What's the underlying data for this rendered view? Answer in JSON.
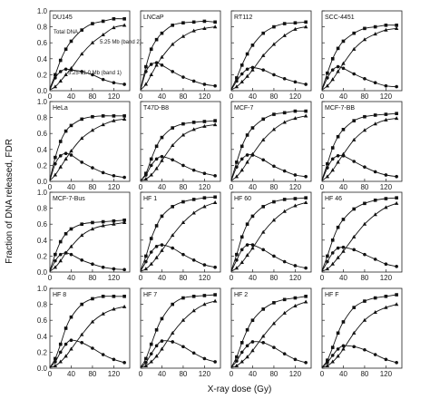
{
  "chart_data": {
    "type": "scatter",
    "xlabel": "X-ray dose (Gy)",
    "ylabel": "Fraction of DNA released, FDR",
    "xlim": [
      0,
      150
    ],
    "ylim": [
      0,
      1.0
    ],
    "x_ticks": [
      "0",
      "40",
      "80",
      "120"
    ],
    "y_ticks": [
      "0.0",
      "0.2",
      "0.4",
      "0.6",
      "0.8",
      "1.0"
    ],
    "doses": [
      0,
      10,
      20,
      30,
      40,
      60,
      80,
      100,
      120,
      140
    ],
    "annotations": {
      "total": "Total DNA",
      "band2": "5.25 Mb (band 2)",
      "band1": "5.25-11.0 Mb (band 1)"
    },
    "panels": [
      {
        "name": "DU145",
        "series": [
          {
            "marker": "square",
            "values": [
              0.03,
              0.2,
              0.38,
              0.52,
              0.62,
              0.76,
              0.84,
              0.87,
              0.9,
              0.9
            ]
          },
          {
            "marker": "triangle",
            "values": [
              0.01,
              0.05,
              0.12,
              0.2,
              0.28,
              0.46,
              0.6,
              0.7,
              0.79,
              0.82
            ]
          },
          {
            "marker": "circle",
            "values": [
              0.01,
              0.16,
              0.24,
              0.27,
              0.26,
              0.24,
              0.2,
              0.14,
              0.1,
              0.08
            ]
          }
        ]
      },
      {
        "name": "LNCaP",
        "series": [
          {
            "marker": "square",
            "values": [
              0.02,
              0.3,
              0.52,
              0.64,
              0.72,
              0.82,
              0.85,
              0.86,
              0.87,
              0.86
            ]
          },
          {
            "marker": "triangle",
            "values": [
              0.01,
              0.08,
              0.2,
              0.32,
              0.42,
              0.58,
              0.68,
              0.75,
              0.78,
              0.8
            ]
          },
          {
            "marker": "circle",
            "values": [
              0.01,
              0.24,
              0.33,
              0.35,
              0.32,
              0.24,
              0.17,
              0.12,
              0.08,
              0.06
            ]
          }
        ]
      },
      {
        "name": "RT112",
        "series": [
          {
            "marker": "square",
            "values": [
              0.02,
              0.16,
              0.32,
              0.46,
              0.57,
              0.72,
              0.8,
              0.84,
              0.85,
              0.86
            ]
          },
          {
            "marker": "triangle",
            "values": [
              0.01,
              0.05,
              0.11,
              0.18,
              0.26,
              0.44,
              0.58,
              0.69,
              0.77,
              0.8
            ]
          },
          {
            "marker": "circle",
            "values": [
              0.01,
              0.12,
              0.21,
              0.27,
              0.29,
              0.26,
              0.2,
              0.15,
              0.11,
              0.08
            ]
          }
        ]
      },
      {
        "name": "SCC-4451",
        "series": [
          {
            "marker": "square",
            "values": [
              0.02,
              0.22,
              0.4,
              0.53,
              0.62,
              0.72,
              0.78,
              0.8,
              0.82,
              0.82
            ]
          },
          {
            "marker": "triangle",
            "values": [
              0.01,
              0.06,
              0.14,
              0.24,
              0.34,
              0.52,
              0.64,
              0.71,
              0.76,
              0.78
            ]
          },
          {
            "marker": "circle",
            "values": [
              0.01,
              0.16,
              0.26,
              0.3,
              0.28,
              0.21,
              0.15,
              0.1,
              0.06,
              0.05
            ]
          }
        ]
      },
      {
        "name": "HeLa",
        "series": [
          {
            "marker": "square",
            "values": [
              0.02,
              0.3,
              0.5,
              0.63,
              0.7,
              0.78,
              0.81,
              0.82,
              0.82,
              0.82
            ]
          },
          {
            "marker": "triangle",
            "values": [
              0.01,
              0.08,
              0.18,
              0.28,
              0.38,
              0.54,
              0.64,
              0.71,
              0.76,
              0.78
            ]
          },
          {
            "marker": "circle",
            "values": [
              0.01,
              0.22,
              0.32,
              0.35,
              0.33,
              0.24,
              0.17,
              0.11,
              0.07,
              0.05
            ]
          }
        ]
      },
      {
        "name": "T47D-B8",
        "series": [
          {
            "marker": "square",
            "values": [
              0.01,
              0.1,
              0.28,
              0.44,
              0.55,
              0.67,
              0.72,
              0.74,
              0.75,
              0.76
            ]
          },
          {
            "marker": "triangle",
            "values": [
              0.01,
              0.03,
              0.08,
              0.16,
              0.26,
              0.45,
              0.58,
              0.65,
              0.69,
              0.71
            ]
          },
          {
            "marker": "circle",
            "values": [
              0.01,
              0.08,
              0.2,
              0.28,
              0.31,
              0.27,
              0.2,
              0.14,
              0.1,
              0.07
            ]
          }
        ]
      },
      {
        "name": "MCF-7",
        "series": [
          {
            "marker": "square",
            "values": [
              0.02,
              0.24,
              0.44,
              0.58,
              0.67,
              0.78,
              0.84,
              0.86,
              0.88,
              0.88
            ]
          },
          {
            "marker": "triangle",
            "values": [
              0.01,
              0.06,
              0.14,
              0.24,
              0.34,
              0.52,
              0.65,
              0.74,
              0.79,
              0.82
            ]
          },
          {
            "marker": "circle",
            "values": [
              0.01,
              0.18,
              0.28,
              0.33,
              0.33,
              0.27,
              0.19,
              0.13,
              0.08,
              0.06
            ]
          }
        ]
      },
      {
        "name": "MCF-7-BB",
        "series": [
          {
            "marker": "square",
            "values": [
              0.02,
              0.22,
              0.42,
              0.56,
              0.65,
              0.76,
              0.81,
              0.83,
              0.84,
              0.85
            ]
          },
          {
            "marker": "triangle",
            "values": [
              0.01,
              0.06,
              0.14,
              0.24,
              0.34,
              0.52,
              0.64,
              0.72,
              0.77,
              0.79
            ]
          },
          {
            "marker": "circle",
            "values": [
              0.01,
              0.17,
              0.28,
              0.32,
              0.32,
              0.25,
              0.18,
              0.12,
              0.08,
              0.06
            ]
          }
        ]
      },
      {
        "name": "MCF-7-Bus",
        "series": [
          {
            "marker": "square",
            "values": [
              0.02,
              0.22,
              0.38,
              0.48,
              0.54,
              0.6,
              0.62,
              0.63,
              0.64,
              0.65
            ]
          },
          {
            "marker": "triangle",
            "values": [
              0.01,
              0.06,
              0.14,
              0.24,
              0.32,
              0.46,
              0.54,
              0.58,
              0.6,
              0.62
            ]
          },
          {
            "marker": "circle",
            "values": [
              0.01,
              0.14,
              0.22,
              0.24,
              0.22,
              0.15,
              0.1,
              0.06,
              0.04,
              0.03
            ]
          }
        ]
      },
      {
        "name": "HF 1",
        "series": [
          {
            "marker": "square",
            "values": [
              0.02,
              0.2,
              0.42,
              0.58,
              0.7,
              0.82,
              0.88,
              0.91,
              0.93,
              0.94
            ]
          },
          {
            "marker": "triangle",
            "values": [
              0.01,
              0.04,
              0.1,
              0.18,
              0.27,
              0.46,
              0.62,
              0.74,
              0.82,
              0.87
            ]
          },
          {
            "marker": "circle",
            "values": [
              0.01,
              0.13,
              0.25,
              0.32,
              0.34,
              0.3,
              0.22,
              0.15,
              0.09,
              0.06
            ]
          }
        ]
      },
      {
        "name": "HF 60",
        "series": [
          {
            "marker": "square",
            "values": [
              0.02,
              0.22,
              0.44,
              0.6,
              0.7,
              0.82,
              0.88,
              0.91,
              0.92,
              0.93
            ]
          },
          {
            "marker": "triangle",
            "values": [
              0.01,
              0.05,
              0.12,
              0.21,
              0.3,
              0.5,
              0.65,
              0.76,
              0.83,
              0.87
            ]
          },
          {
            "marker": "circle",
            "values": [
              0.01,
              0.15,
              0.28,
              0.34,
              0.34,
              0.28,
              0.2,
              0.13,
              0.08,
              0.05
            ]
          }
        ]
      },
      {
        "name": "HF 46",
        "series": [
          {
            "marker": "square",
            "values": [
              0.02,
              0.2,
              0.4,
              0.56,
              0.66,
              0.79,
              0.86,
              0.9,
              0.92,
              0.93
            ]
          },
          {
            "marker": "triangle",
            "values": [
              0.01,
              0.04,
              0.1,
              0.18,
              0.26,
              0.44,
              0.6,
              0.72,
              0.81,
              0.86
            ]
          },
          {
            "marker": "circle",
            "values": [
              0.01,
              0.13,
              0.24,
              0.3,
              0.31,
              0.28,
              0.22,
              0.16,
              0.1,
              0.07
            ]
          }
        ]
      },
      {
        "name": "HF 8",
        "series": [
          {
            "marker": "square",
            "values": [
              0.01,
              0.12,
              0.3,
              0.5,
              0.64,
              0.8,
              0.87,
              0.9,
              0.9,
              0.9
            ]
          },
          {
            "marker": "triangle",
            "values": [
              0.01,
              0.03,
              0.08,
              0.15,
              0.24,
              0.42,
              0.58,
              0.68,
              0.74,
              0.77
            ]
          },
          {
            "marker": "circle",
            "values": [
              0.01,
              0.08,
              0.2,
              0.3,
              0.35,
              0.32,
              0.25,
              0.17,
              0.11,
              0.07
            ]
          }
        ]
      },
      {
        "name": "HF 7",
        "series": [
          {
            "marker": "square",
            "values": [
              0.01,
              0.12,
              0.3,
              0.48,
              0.62,
              0.8,
              0.88,
              0.9,
              0.91,
              0.92
            ]
          },
          {
            "marker": "triangle",
            "values": [
              0.01,
              0.03,
              0.08,
              0.15,
              0.24,
              0.44,
              0.6,
              0.72,
              0.8,
              0.84
            ]
          },
          {
            "marker": "circle",
            "values": [
              0.01,
              0.07,
              0.18,
              0.28,
              0.34,
              0.33,
              0.27,
              0.19,
              0.12,
              0.08
            ]
          }
        ]
      },
      {
        "name": "HF 2",
        "series": [
          {
            "marker": "square",
            "values": [
              0.01,
              0.14,
              0.32,
              0.48,
              0.6,
              0.74,
              0.82,
              0.86,
              0.88,
              0.9
            ]
          },
          {
            "marker": "triangle",
            "values": [
              0.01,
              0.03,
              0.08,
              0.14,
              0.22,
              0.4,
              0.56,
              0.69,
              0.78,
              0.83
            ]
          },
          {
            "marker": "circle",
            "values": [
              0.01,
              0.09,
              0.2,
              0.28,
              0.33,
              0.32,
              0.26,
              0.18,
              0.11,
              0.07
            ]
          }
        ]
      },
      {
        "name": "HF F",
        "series": [
          {
            "marker": "square",
            "values": [
              0.01,
              0.1,
              0.26,
              0.44,
              0.58,
              0.76,
              0.84,
              0.88,
              0.9,
              0.92
            ]
          },
          {
            "marker": "triangle",
            "values": [
              0.01,
              0.03,
              0.08,
              0.15,
              0.24,
              0.44,
              0.6,
              0.7,
              0.76,
              0.8
            ]
          },
          {
            "marker": "circle",
            "values": [
              0.01,
              0.07,
              0.16,
              0.24,
              0.28,
              0.27,
              0.23,
              0.17,
              0.11,
              0.07
            ]
          }
        ]
      }
    ]
  }
}
